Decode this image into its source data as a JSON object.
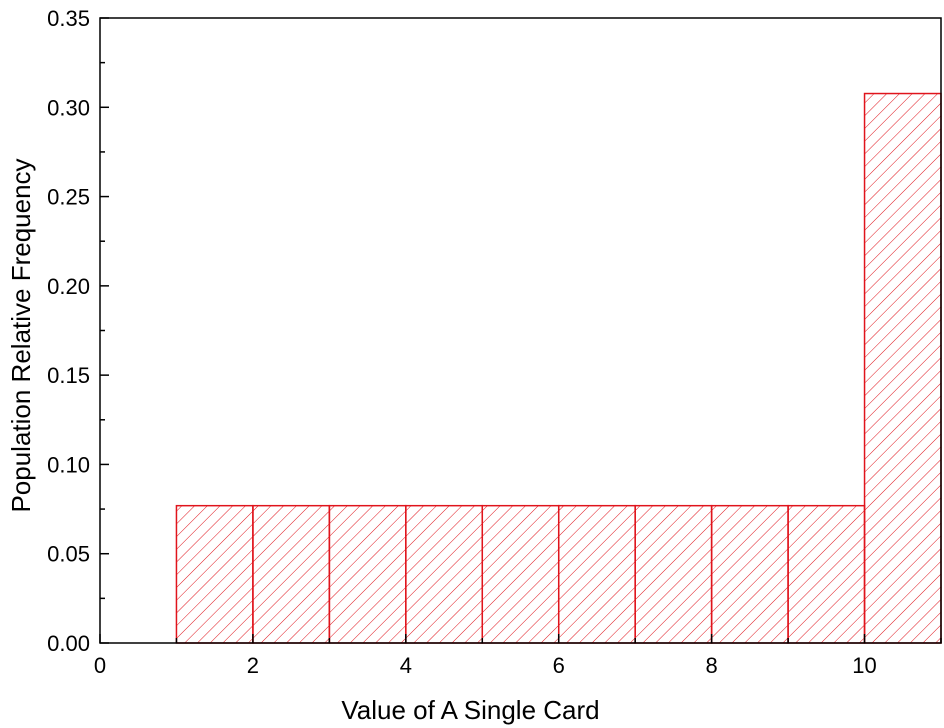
{
  "chart_data": {
    "type": "bar",
    "xlabel": "Value of A  Single Card",
    "ylabel": "Population Relative Frequency",
    "xlim": [
      0,
      11
    ],
    "ylim": [
      0,
      0.35
    ],
    "x_ticks": [
      0,
      2,
      4,
      6,
      8,
      10
    ],
    "x_tick_labels": [
      "0",
      "2",
      "4",
      "6",
      "8",
      "10"
    ],
    "y_ticks": [
      0,
      0.05,
      0.1,
      0.15,
      0.2,
      0.25,
      0.3,
      0.35
    ],
    "y_tick_labels": [
      "0.00",
      "0.05",
      "0.10",
      "0.15",
      "0.20",
      "0.25",
      "0.30",
      "0.35"
    ],
    "bars": [
      {
        "x0": 1,
        "x1": 2,
        "value": 0.0769
      },
      {
        "x0": 2,
        "x1": 3,
        "value": 0.0769
      },
      {
        "x0": 3,
        "x1": 4,
        "value": 0.0769
      },
      {
        "x0": 4,
        "x1": 5,
        "value": 0.0769
      },
      {
        "x0": 5,
        "x1": 6,
        "value": 0.0769
      },
      {
        "x0": 6,
        "x1": 7,
        "value": 0.0769
      },
      {
        "x0": 7,
        "x1": 8,
        "value": 0.0769
      },
      {
        "x0": 8,
        "x1": 9,
        "value": 0.0769
      },
      {
        "x0": 9,
        "x1": 10,
        "value": 0.0769
      },
      {
        "x0": 10,
        "x1": 11,
        "value": 0.3077
      }
    ],
    "bar_color": "#e0141c",
    "fill_pattern": "diagonal-hatch",
    "grid": false,
    "legend": "none"
  }
}
